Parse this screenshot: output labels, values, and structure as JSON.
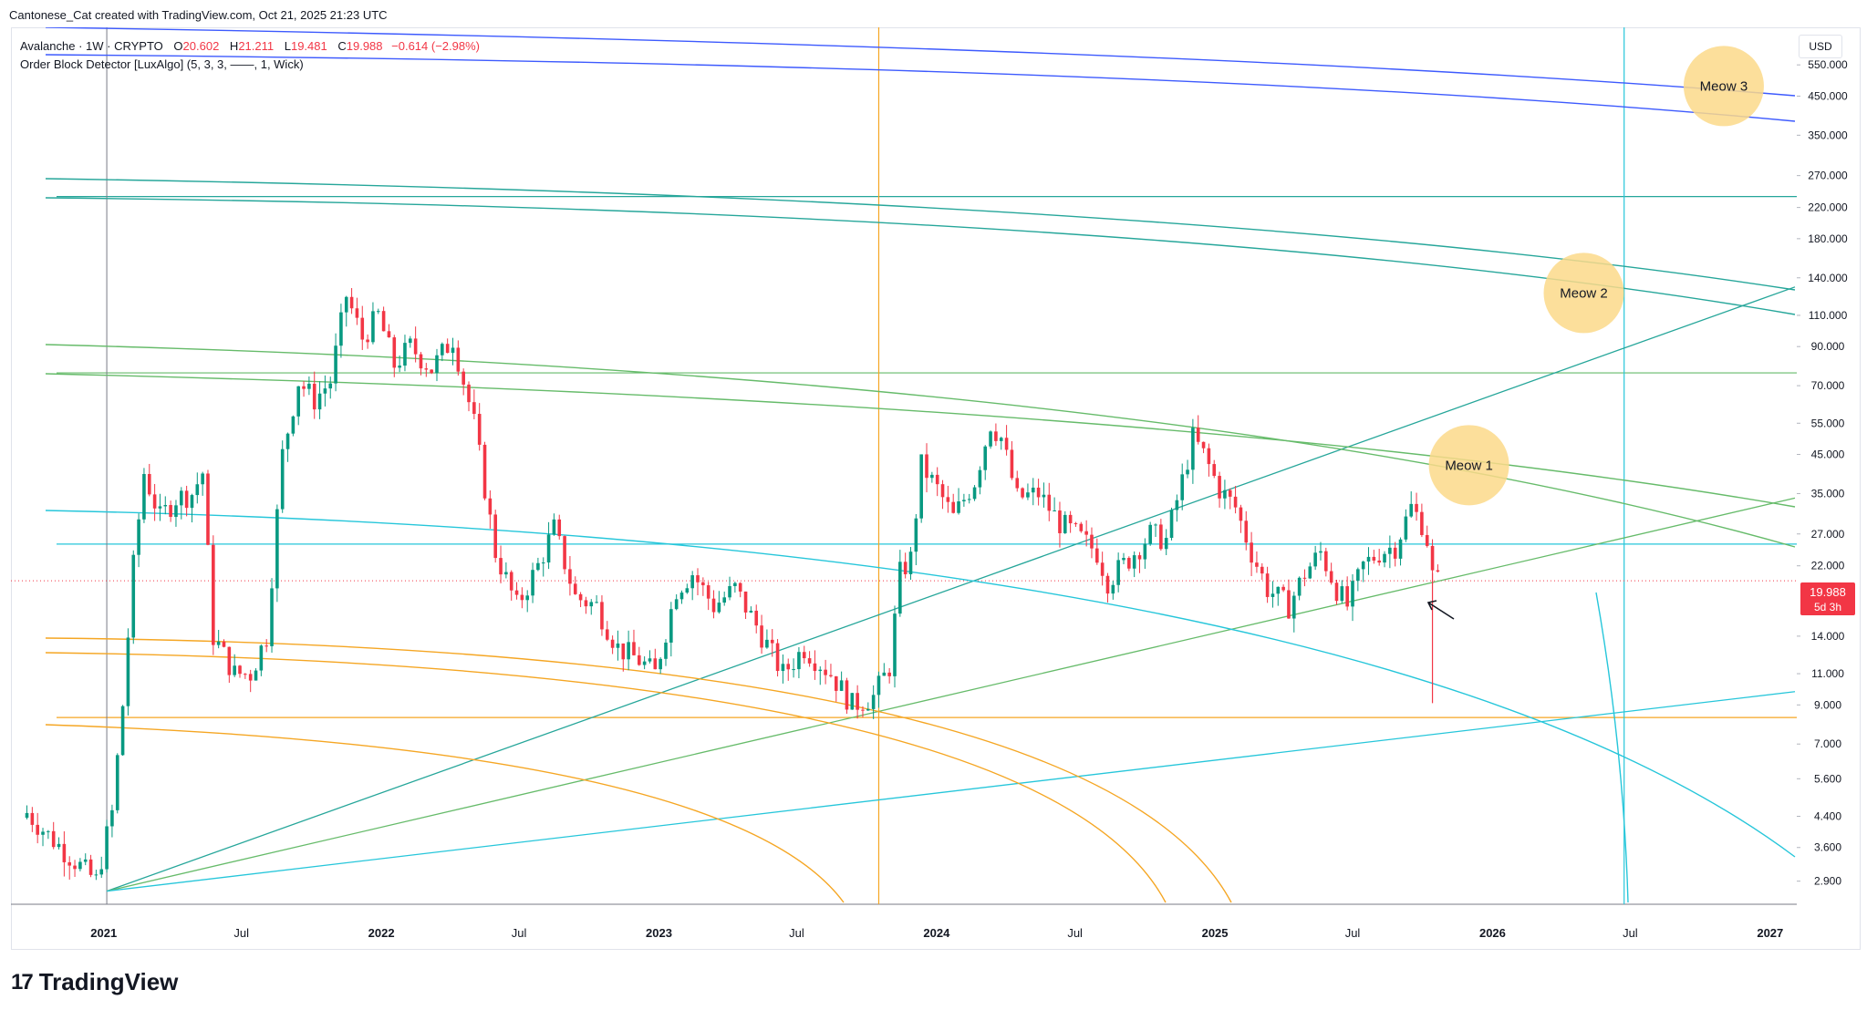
{
  "header": {
    "credit": "Cantonese_Cat created with TradingView.com, Oct 21, 2025 21:23 UTC"
  },
  "legend": {
    "symbol": "Avalanche · 1W · CRYPTO",
    "open_label": "O",
    "open": "20.602",
    "high_label": "H",
    "high": "21.211",
    "low_label": "L",
    "low": "19.481",
    "close_label": "C",
    "close": "19.988",
    "change": "−0.614 (−2.98%)",
    "indicator": "Order Block Detector [LuxAlgo] (5, 3, 3, ——, 1, Wick)"
  },
  "currency": "USD",
  "price_tag": {
    "value": "19.988",
    "countdown": "5d 3h"
  },
  "brand": {
    "name": "TradingView"
  },
  "colors": {
    "up": "#089981",
    "down": "#f23645",
    "teal": "#26a69a",
    "cyan": "#26c6da",
    "green": "#66bb6a",
    "orange": "#f5a623",
    "blue": "#3d5afe",
    "bubble": "#fbd98a"
  },
  "chart_data": {
    "type": "candlestick",
    "xlabel": "",
    "ylabel": "",
    "y_scale": "log",
    "ylim": [
      2.5,
      700
    ],
    "y_ticks": [
      "550.000",
      "450.000",
      "350.000",
      "270.000",
      "220.000",
      "180.000",
      "140.000",
      "110.000",
      "90.000",
      "70.000",
      "55.000",
      "45.000",
      "35.000",
      "27.000",
      "22.000",
      "14.000",
      "11.000",
      "9.000",
      "7.000",
      "5.600",
      "4.400",
      "3.600",
      "2.900"
    ],
    "x_ticks": [
      {
        "label": "2021",
        "date": "2021-01-01"
      },
      {
        "label": "Jul",
        "date": "2021-07-01"
      },
      {
        "label": "2022",
        "date": "2022-01-01"
      },
      {
        "label": "Jul",
        "date": "2022-07-01"
      },
      {
        "label": "2023",
        "date": "2023-01-01"
      },
      {
        "label": "Jul",
        "date": "2023-07-01"
      },
      {
        "label": "2024",
        "date": "2024-01-01"
      },
      {
        "label": "Jul",
        "date": "2024-07-01"
      },
      {
        "label": "2025",
        "date": "2025-01-01"
      },
      {
        "label": "Jul",
        "date": "2025-07-01"
      },
      {
        "label": "2026",
        "date": "2026-01-01"
      },
      {
        "label": "Jul",
        "date": "2026-07-01"
      },
      {
        "label": "2027",
        "date": "2027-01-01"
      }
    ],
    "last_price": 19.988,
    "price_path": [
      [
        "2020-09-22",
        4.5
      ],
      [
        "2020-10-20",
        3.9
      ],
      [
        "2020-11-24",
        3.3
      ],
      [
        "2020-12-22",
        2.9
      ],
      [
        "2021-01-12",
        4.5
      ],
      [
        "2021-01-26",
        9.0
      ],
      [
        "2021-02-09",
        22.0
      ],
      [
        "2021-02-23",
        40.0
      ],
      [
        "2021-03-16",
        30.0
      ],
      [
        "2021-04-06",
        34.0
      ],
      [
        "2021-04-27",
        35.0
      ],
      [
        "2021-05-11",
        40.0
      ],
      [
        "2021-05-25",
        14.0
      ],
      [
        "2021-06-22",
        11.0
      ],
      [
        "2021-07-13",
        11.0
      ],
      [
        "2021-08-03",
        14.0
      ],
      [
        "2021-08-24",
        45.0
      ],
      [
        "2021-09-14",
        72.0
      ],
      [
        "2021-10-05",
        64.0
      ],
      [
        "2021-10-26",
        72.0
      ],
      [
        "2021-11-16",
        125.0
      ],
      [
        "2021-12-07",
        95.0
      ],
      [
        "2021-12-28",
        110.0
      ],
      [
        "2022-01-18",
        80.0
      ],
      [
        "2022-02-08",
        90.0
      ],
      [
        "2022-03-08",
        78.0
      ],
      [
        "2022-04-05",
        95.0
      ],
      [
        "2022-05-03",
        55.0
      ],
      [
        "2022-05-31",
        24.0
      ],
      [
        "2022-06-28",
        17.0
      ],
      [
        "2022-07-26",
        22.0
      ],
      [
        "2022-08-16",
        28.0
      ],
      [
        "2022-09-13",
        18.0
      ],
      [
        "2022-10-11",
        17.0
      ],
      [
        "2022-11-08",
        13.0
      ],
      [
        "2022-12-06",
        12.0
      ],
      [
        "2022-12-27",
        11.0
      ],
      [
        "2023-01-24",
        19.0
      ],
      [
        "2023-02-14",
        21.0
      ],
      [
        "2023-03-14",
        17.0
      ],
      [
        "2023-04-11",
        19.0
      ],
      [
        "2023-05-09",
        15.0
      ],
      [
        "2023-06-13",
        11.0
      ],
      [
        "2023-07-11",
        13.0
      ],
      [
        "2023-08-15",
        11.0
      ],
      [
        "2023-09-12",
        9.0
      ],
      [
        "2023-10-10",
        9.5
      ],
      [
        "2023-10-31",
        11.5
      ],
      [
        "2023-11-14",
        21.0
      ],
      [
        "2023-11-28",
        23.0
      ],
      [
        "2023-12-12",
        42.0
      ],
      [
        "2024-01-02",
        36.0
      ],
      [
        "2024-01-23",
        30.0
      ],
      [
        "2024-02-20",
        38.0
      ],
      [
        "2024-03-12",
        55.0
      ],
      [
        "2024-03-26",
        50.0
      ],
      [
        "2024-04-16",
        34.0
      ],
      [
        "2024-05-14",
        35.0
      ],
      [
        "2024-06-11",
        29.0
      ],
      [
        "2024-07-02",
        27.0
      ],
      [
        "2024-07-30",
        24.0
      ],
      [
        "2024-08-13",
        20.0
      ],
      [
        "2024-09-10",
        23.0
      ],
      [
        "2024-10-08",
        27.0
      ],
      [
        "2024-10-29",
        26.0
      ],
      [
        "2024-11-19",
        38.0
      ],
      [
        "2024-12-03",
        50.0
      ],
      [
        "2024-12-17",
        45.0
      ],
      [
        "2025-01-07",
        36.0
      ],
      [
        "2025-01-28",
        32.0
      ],
      [
        "2025-02-18",
        24.0
      ],
      [
        "2025-03-11",
        19.0
      ],
      [
        "2025-04-08",
        17.0
      ],
      [
        "2025-04-29",
        21.0
      ],
      [
        "2025-05-20",
        24.0
      ],
      [
        "2025-06-10",
        19.0
      ],
      [
        "2025-06-24",
        17.0
      ],
      [
        "2025-07-15",
        22.0
      ],
      [
        "2025-08-05",
        24.0
      ],
      [
        "2025-08-26",
        25.0
      ],
      [
        "2025-09-16",
        32.0
      ],
      [
        "2025-09-30",
        29.0
      ],
      [
        "2025-10-07",
        26.0
      ],
      [
        "2025-10-14",
        20.6
      ],
      [
        "2025-10-21",
        19.988
      ]
    ],
    "annotations": [
      {
        "text": "Meow 1",
        "date": "2025-12-01",
        "price": 42
      },
      {
        "text": "Meow 2",
        "date": "2026-05-01",
        "price": 127
      },
      {
        "text": "Meow 3",
        "date": "2026-11-01",
        "price": 480
      }
    ],
    "horizontal_lines": [
      {
        "price": 236,
        "color": "teal"
      },
      {
        "price": 76,
        "color": "green"
      },
      {
        "price": 25.3,
        "color": "cyan"
      },
      {
        "price": 8.3,
        "color": "orange"
      }
    ],
    "vertical_lines": [
      {
        "date": "2023-10-17",
        "color": "orange"
      },
      {
        "date": "2026-06-23",
        "color": "cyan"
      }
    ]
  }
}
